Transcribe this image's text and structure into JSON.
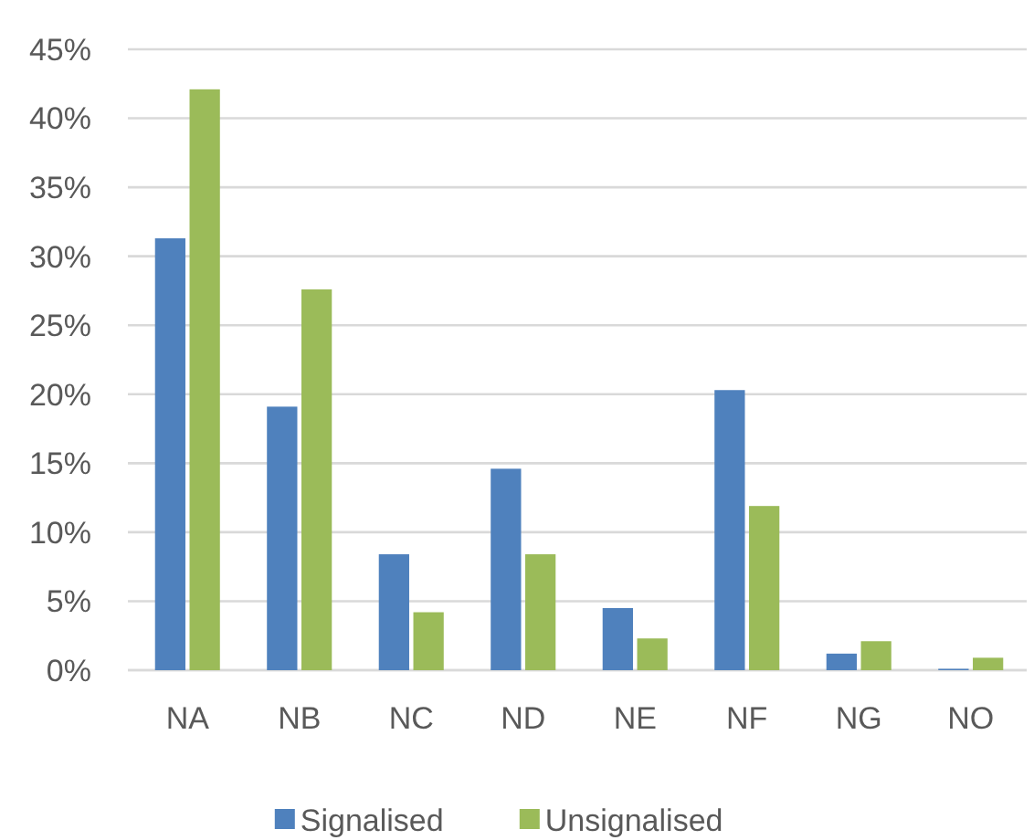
{
  "chart_data": {
    "type": "bar",
    "categories": [
      "NA",
      "NB",
      "NC",
      "ND",
      "NE",
      "NF",
      "NG",
      "NO"
    ],
    "series": [
      {
        "name": "Signalised",
        "color": "#4f81bd",
        "values": [
          31.3,
          19.1,
          8.4,
          14.6,
          4.5,
          20.3,
          1.2,
          0.1
        ]
      },
      {
        "name": "Unsignalised",
        "color": "#9bbb59",
        "values": [
          42.1,
          27.6,
          4.2,
          8.4,
          2.3,
          11.9,
          2.1,
          0.9
        ]
      }
    ],
    "ylim": [
      0,
      45
    ],
    "yticks": [
      {
        "value": 0,
        "label": "0%"
      },
      {
        "value": 5,
        "label": "5%"
      },
      {
        "value": 10,
        "label": "10%"
      },
      {
        "value": 15,
        "label": "15%"
      },
      {
        "value": 20,
        "label": "20%"
      },
      {
        "value": 25,
        "label": "25%"
      },
      {
        "value": 30,
        "label": "30%"
      },
      {
        "value": 35,
        "label": "35%"
      },
      {
        "value": 40,
        "label": "40%"
      },
      {
        "value": 45,
        "label": "45%"
      }
    ],
    "grid": "y",
    "legend": "bottom"
  }
}
